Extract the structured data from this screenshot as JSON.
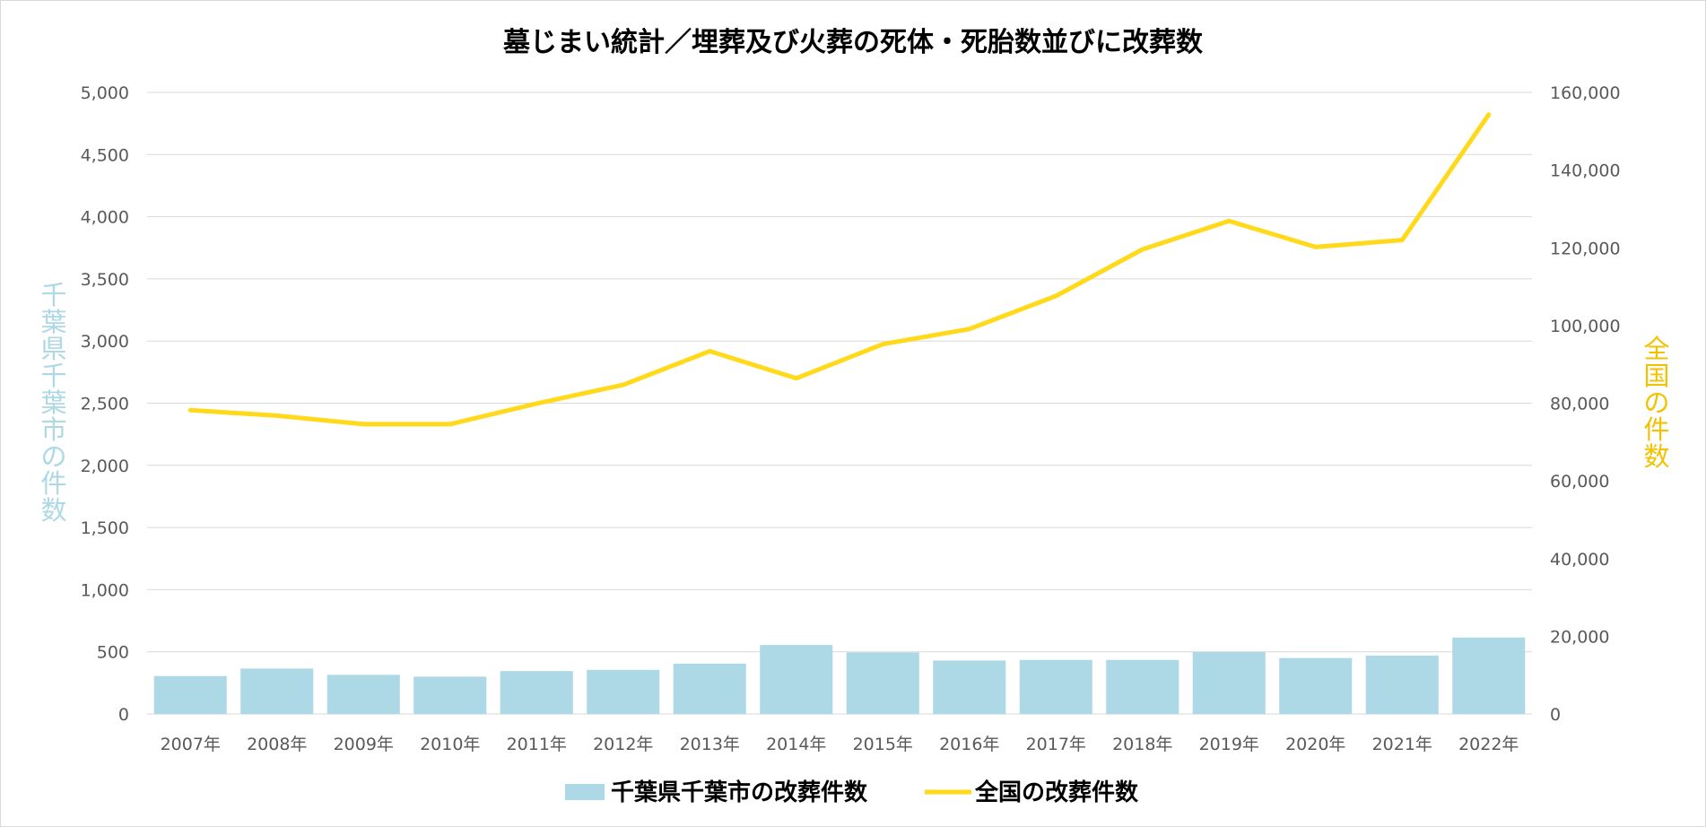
{
  "chart_data": {
    "type": "bar",
    "title": "墓じまい統計／埋葬及び火葬の死体・死胎数並びに改葬数",
    "categories": [
      "2007年",
      "2008年",
      "2009年",
      "2010年",
      "2011年",
      "2012年",
      "2013年",
      "2014年",
      "2015年",
      "2016年",
      "2017年",
      "2018年",
      "2019年",
      "2020年",
      "2021年",
      "2022年"
    ],
    "y_left": {
      "label_chars": [
        "千",
        "葉",
        "県",
        "千",
        "葉",
        "市",
        "の",
        "件",
        "数"
      ],
      "range": [
        0,
        5000
      ],
      "ticks": [
        0,
        500,
        1000,
        1500,
        2000,
        2500,
        3000,
        3500,
        4000,
        4500,
        5000
      ],
      "tick_labels": [
        "0",
        "500",
        "1,000",
        "1,500",
        "2,000",
        "2,500",
        "3,000",
        "3,500",
        "4,000",
        "4,500",
        "5,000"
      ]
    },
    "y_right": {
      "label_chars": [
        "全",
        "国",
        "の",
        "件",
        "数"
      ],
      "range": [
        0,
        160000
      ],
      "ticks": [
        0,
        20000,
        40000,
        60000,
        80000,
        100000,
        120000,
        140000,
        160000
      ],
      "tick_labels": [
        "0",
        "20,000",
        "40,000",
        "60,000",
        "80,000",
        "100,000",
        "120,000",
        "140,000",
        "160,000"
      ]
    },
    "series": [
      {
        "name": "千葉県千葉市の改葬件数",
        "type": "bar",
        "axis": "left",
        "color": "#add8e6",
        "values": [
          305,
          365,
          315,
          300,
          345,
          355,
          405,
          555,
          495,
          430,
          435,
          435,
          500,
          450,
          470,
          615
        ]
      },
      {
        "name": "全国の改葬件数",
        "type": "line",
        "axis": "right",
        "color": "#ffd91a",
        "values": [
          78200,
          76800,
          74600,
          74600,
          79900,
          84700,
          93400,
          86400,
          95200,
          99100,
          107600,
          119600,
          126900,
          120200,
          122000,
          154300
        ]
      }
    ],
    "grid": true,
    "legend_position": "bottom-center"
  },
  "colors": {
    "left_axis_label": "#add8e6",
    "right_axis_label": "#f2c200",
    "tick_text": "#595959",
    "grid": "#d9d9d9"
  }
}
